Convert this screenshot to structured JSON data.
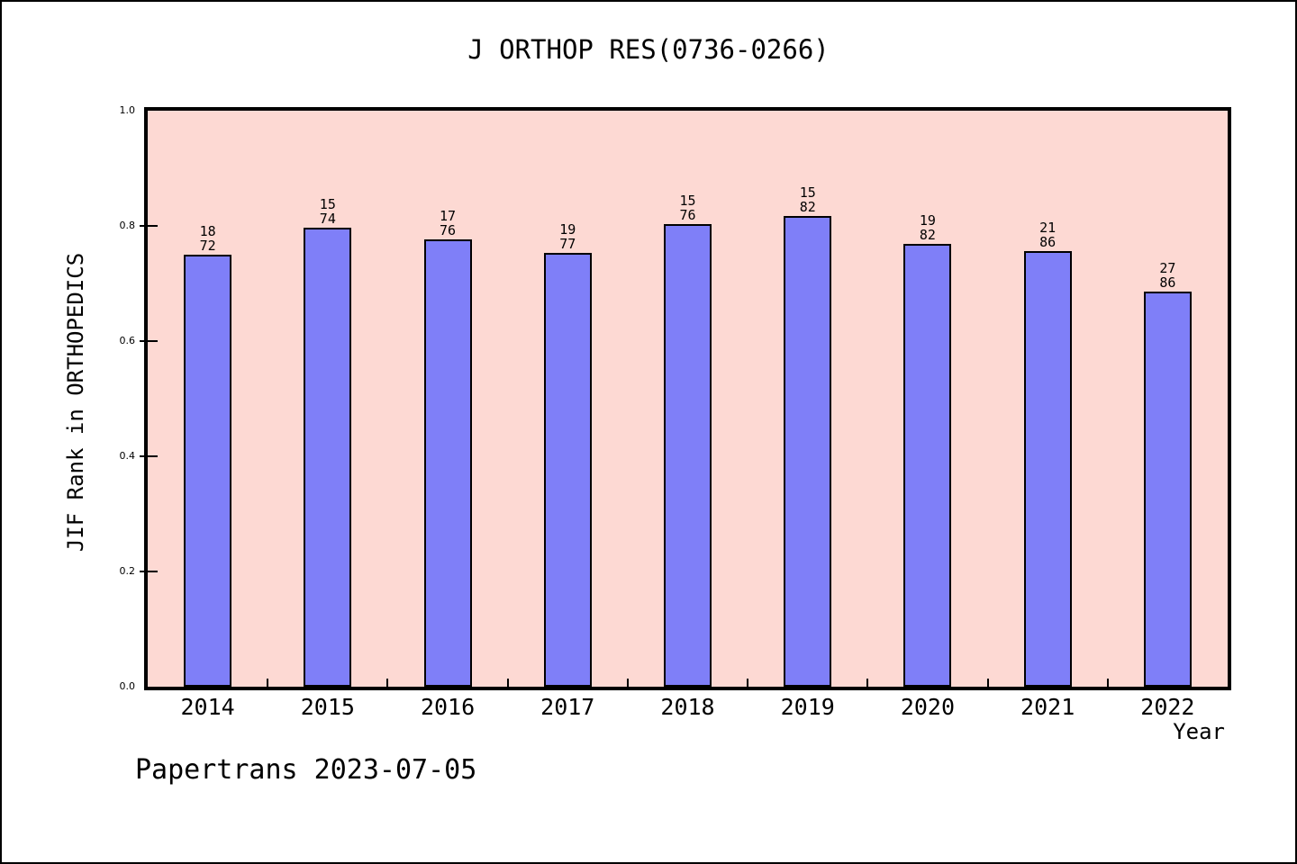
{
  "page": {
    "title": "J ORTHOP RES(0736-0266)",
    "footer": "Papertrans 2023-07-05"
  },
  "chart_data": {
    "type": "bar",
    "title": "J ORTHOP RES(0736-0266)",
    "xlabel": "Year",
    "ylabel": "JIF Rank in ORTHOPEDICS",
    "ylim": [
      0.0,
      1.0
    ],
    "ytick_labels": [
      "0.0",
      "0.2",
      "0.4",
      "0.6",
      "0.8",
      "1.0"
    ],
    "grid": "off",
    "legend": "none",
    "categories": [
      "2014",
      "2015",
      "2016",
      "2017",
      "2018",
      "2019",
      "2020",
      "2021",
      "2022"
    ],
    "values": [
      0.75,
      0.797,
      0.776,
      0.753,
      0.803,
      0.817,
      0.768,
      0.756,
      0.686
    ],
    "bar_annotations": [
      {
        "rank": "18",
        "total": "72"
      },
      {
        "rank": "15",
        "total": "74"
      },
      {
        "rank": "17",
        "total": "76"
      },
      {
        "rank": "19",
        "total": "77"
      },
      {
        "rank": "15",
        "total": "76"
      },
      {
        "rank": "15",
        "total": "82"
      },
      {
        "rank": "19",
        "total": "82"
      },
      {
        "rank": "21",
        "total": "86"
      },
      {
        "rank": "27",
        "total": "86"
      }
    ],
    "annotation_meaning": "rank over total, bar height = 1 - rank/total",
    "colors": {
      "bar_fill": "#7f7ff8",
      "bar_border": "#000000",
      "plot_background": "#fdd9d3",
      "page_background": "#ffffff",
      "frame": "#000000"
    }
  }
}
